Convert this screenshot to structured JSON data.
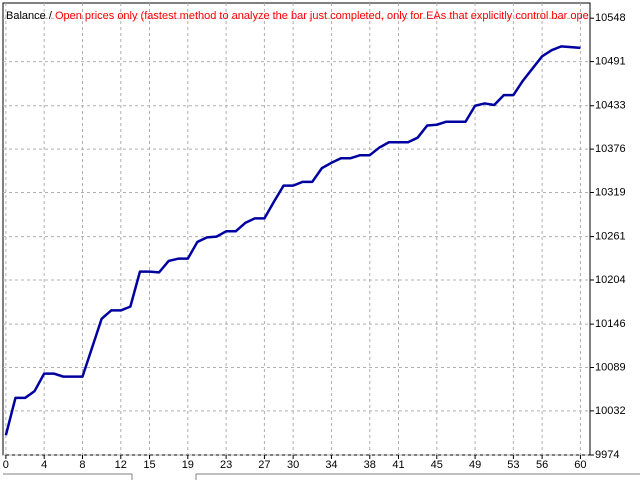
{
  "chart_data": {
    "type": "line",
    "title": "Balance",
    "title_separator": "/",
    "subtitle": "Open prices only (fastest method to analyze the bar just completed, only for EAs that explicitly control bar openin",
    "subtitle_color": "#ff0000",
    "x": [
      0,
      1,
      2,
      3,
      4,
      5,
      6,
      7,
      8,
      9,
      10,
      11,
      12,
      13,
      14,
      15,
      16,
      17,
      18,
      19,
      20,
      21,
      22,
      23,
      24,
      25,
      26,
      27,
      28,
      29,
      30,
      31,
      32,
      33,
      34,
      35,
      36,
      37,
      38,
      39,
      40,
      41,
      42,
      43,
      44,
      45,
      46,
      47,
      48,
      49,
      50,
      51,
      52,
      53,
      54,
      55,
      56,
      57,
      58,
      59,
      60
    ],
    "series": [
      {
        "name": "Balance",
        "color": "#0000a0",
        "values": [
          10000,
          10049,
          10049,
          10058,
          10081,
          10081,
          10077,
          10077,
          10077,
          10115,
          10153,
          10164,
          10164,
          10169,
          10215,
          10215,
          10214,
          10229,
          10232,
          10232,
          10254,
          10260,
          10261,
          10268,
          10268,
          10279,
          10285,
          10285,
          10307,
          10328,
          10328,
          10333,
          10333,
          10351,
          10358,
          10364,
          10364,
          10368,
          10368,
          10378,
          10385,
          10385,
          10385,
          10391,
          10407,
          10408,
          10412,
          10412,
          10412,
          10433,
          10436,
          10434,
          10447,
          10447,
          10466,
          10482,
          10498,
          10506,
          10511,
          10510,
          10509
        ]
      }
    ],
    "xlim": [
      -0.3,
      61
    ],
    "ylim": [
      9974,
      10568
    ],
    "xticks": [
      0,
      4,
      8,
      12,
      15,
      19,
      23,
      27,
      30,
      34,
      38,
      41,
      45,
      49,
      53,
      56,
      60
    ],
    "yticks": [
      9974,
      10032,
      10089,
      10146,
      10204,
      10261,
      10319,
      10376,
      10433,
      10491,
      10548
    ],
    "grid": true
  }
}
